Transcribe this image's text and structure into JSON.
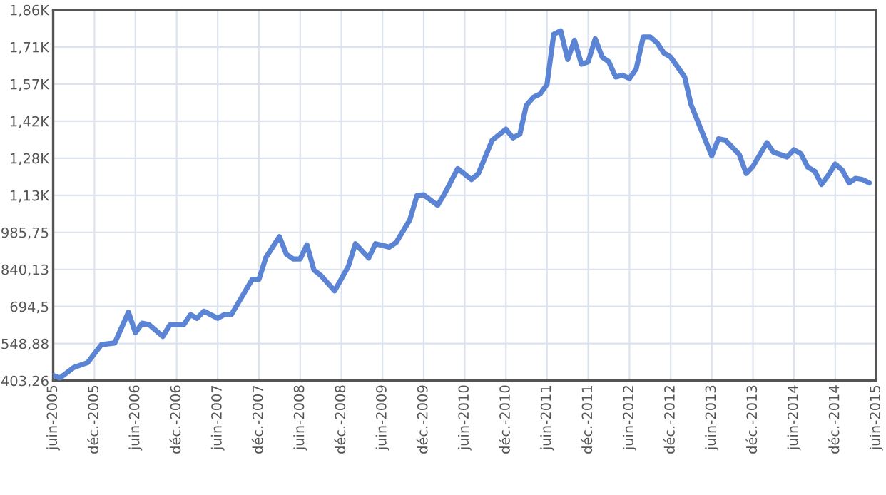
{
  "chart_data": {
    "type": "line",
    "x": [
      "2005-06",
      "2005-07",
      "2005-09",
      "2005-11",
      "2006-01",
      "2006-03",
      "2006-05",
      "2006-06",
      "2006-07",
      "2006-08",
      "2006-10",
      "2006-11",
      "2007-01",
      "2007-02",
      "2007-03",
      "2007-04",
      "2007-06",
      "2007-07",
      "2007-08",
      "2007-11",
      "2007-12",
      "2008-01",
      "2008-03",
      "2008-04",
      "2008-05",
      "2008-06",
      "2008-07",
      "2008-08",
      "2008-09",
      "2008-11",
      "2009-01",
      "2009-02",
      "2009-04",
      "2009-05",
      "2009-07",
      "2009-08",
      "2009-10",
      "2009-11",
      "2009-12",
      "2010-02",
      "2010-03",
      "2010-05",
      "2010-07",
      "2010-08",
      "2010-10",
      "2010-12",
      "2011-01",
      "2011-02",
      "2011-03",
      "2011-04",
      "2011-05",
      "2011-06",
      "2011-07",
      "2011-08",
      "2011-09",
      "2011-10",
      "2011-11",
      "2011-12",
      "2012-01",
      "2012-02",
      "2012-03",
      "2012-04",
      "2012-05",
      "2012-06",
      "2012-07",
      "2012-08",
      "2012-09",
      "2012-10",
      "2012-11",
      "2012-12",
      "2013-02",
      "2013-03",
      "2013-06",
      "2013-07",
      "2013-08",
      "2013-10",
      "2013-11",
      "2013-12",
      "2014-02",
      "2014-03",
      "2014-05",
      "2014-06",
      "2014-07",
      "2014-08",
      "2014-09",
      "2014-10",
      "2014-11",
      "2014-12",
      "2015-01",
      "2015-02",
      "2015-03",
      "2015-04",
      "2015-05"
    ],
    "series": [
      {
        "color": "#5b84d4",
        "values": [
          424,
          414,
          455,
          474,
          545,
          551,
          672,
          592,
          629,
          623,
          577,
          623,
          623,
          663,
          648,
          676,
          648,
          663,
          663,
          801,
          801,
          887,
          969,
          900,
          881,
          881,
          937,
          838,
          816,
          756,
          853,
          941,
          885,
          941,
          928,
          946,
          1036,
          1130,
          1133,
          1092,
          1133,
          1236,
          1193,
          1217,
          1348,
          1391,
          1357,
          1372,
          1484,
          1516,
          1529,
          1566,
          1764,
          1777,
          1665,
          1740,
          1646,
          1656,
          1746,
          1674,
          1656,
          1596,
          1603,
          1590,
          1628,
          1753,
          1753,
          1731,
          1690,
          1674,
          1596,
          1488,
          1286,
          1353,
          1348,
          1292,
          1217,
          1245,
          1338,
          1301,
          1282,
          1310,
          1295,
          1242,
          1226,
          1174,
          1211,
          1254,
          1230,
          1180,
          1198,
          1193,
          1180
        ]
      }
    ],
    "xlim": [
      "2005-06",
      "2015-06"
    ],
    "xticks": [
      {
        "value": "2005-06",
        "label": "juin-2005"
      },
      {
        "value": "2005-12",
        "label": "déc.-2005"
      },
      {
        "value": "2006-06",
        "label": "juin-2006"
      },
      {
        "value": "2006-12",
        "label": "déc.-2006"
      },
      {
        "value": "2007-06",
        "label": "juin-2007"
      },
      {
        "value": "2007-12",
        "label": "déc.-2007"
      },
      {
        "value": "2008-06",
        "label": "juin-2008"
      },
      {
        "value": "2008-12",
        "label": "déc.-2008"
      },
      {
        "value": "2009-06",
        "label": "juin-2009"
      },
      {
        "value": "2009-12",
        "label": "déc.-2009"
      },
      {
        "value": "2010-06",
        "label": "juin-2010"
      },
      {
        "value": "2010-12",
        "label": "déc.-2010"
      },
      {
        "value": "2011-06",
        "label": "juin-2011"
      },
      {
        "value": "2011-12",
        "label": "déc.-2011"
      },
      {
        "value": "2012-06",
        "label": "juin-2012"
      },
      {
        "value": "2012-12",
        "label": "déc.-2012"
      },
      {
        "value": "2013-06",
        "label": "juin-2013"
      },
      {
        "value": "2013-12",
        "label": "déc.-2013"
      },
      {
        "value": "2014-06",
        "label": "juin-2014"
      },
      {
        "value": "2014-12",
        "label": "déc.-2014"
      },
      {
        "value": "2015-06",
        "label": "juin-2015"
      }
    ],
    "ylim": [
      403.26,
      1859.48
    ],
    "yticks": [
      {
        "value": 403.26,
        "label": "403,26"
      },
      {
        "value": 548.88,
        "label": "548,88"
      },
      {
        "value": 694.5,
        "label": "694,5"
      },
      {
        "value": 840.13,
        "label": "840,13"
      },
      {
        "value": 985.75,
        "label": "985,75"
      },
      {
        "value": 1131.37,
        "label": "1,13K"
      },
      {
        "value": 1276.99,
        "label": "1,28K"
      },
      {
        "value": 1422.62,
        "label": "1,42K"
      },
      {
        "value": 1568.24,
        "label": "1,57K"
      },
      {
        "value": 1713.86,
        "label": "1,71K"
      },
      {
        "value": 1859.48,
        "label": "1,86K"
      }
    ],
    "grid": true,
    "marker": "none",
    "line_style": "solid"
  }
}
